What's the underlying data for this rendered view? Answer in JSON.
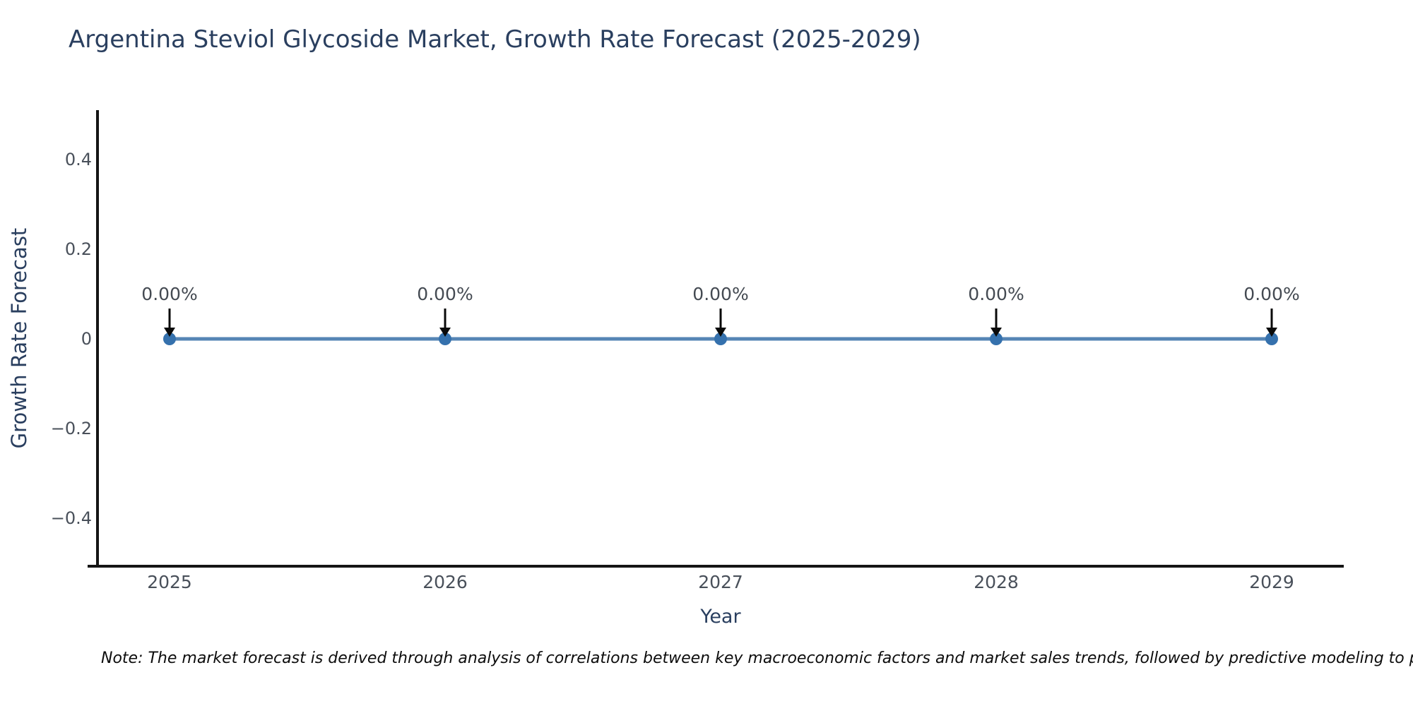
{
  "title": "Argentina Steviol Glycoside Market, Growth Rate Forecast (2025-2029)",
  "note": "Note: The market forecast is derived through analysis of correlations between key macroeconomic factors and market sales trends, followed by predictive modeling to project future sales.",
  "colors": {
    "title_text": "#2a3f5f",
    "tick_text": "#49505a",
    "annotation_text": "#444a52",
    "axis_line": "#151515",
    "series_line": "#5585b5",
    "marker_fill": "#3571ad",
    "background": "#ffffff"
  },
  "chart_data": {
    "type": "line",
    "title": "Argentina Steviol Glycoside Market, Growth Rate Forecast (2025-2029)",
    "x": [
      2025,
      2026,
      2027,
      2028,
      2029
    ],
    "x_labels": [
      "2025",
      "2026",
      "2027",
      "2028",
      "2029"
    ],
    "series": [
      {
        "name": "Growth Rate Forecast",
        "values": [
          0,
          0,
          0,
          0,
          0
        ]
      }
    ],
    "point_labels": [
      "0.00%",
      "0.00%",
      "0.00%",
      "0.00%",
      "0.00%"
    ],
    "xlabel": "Year",
    "ylabel": "Growth Rate Forecast",
    "ylim": [
      -0.5,
      0.5
    ],
    "ytick_values": [
      0.4,
      0.2,
      0,
      -0.2,
      -0.4
    ],
    "ytick_labels": [
      "0.4",
      "0.2",
      "0",
      "−0.2",
      "−0.4"
    ],
    "grid": false,
    "legend": "none",
    "annotation_style": "value-label-with-down-arrow"
  }
}
